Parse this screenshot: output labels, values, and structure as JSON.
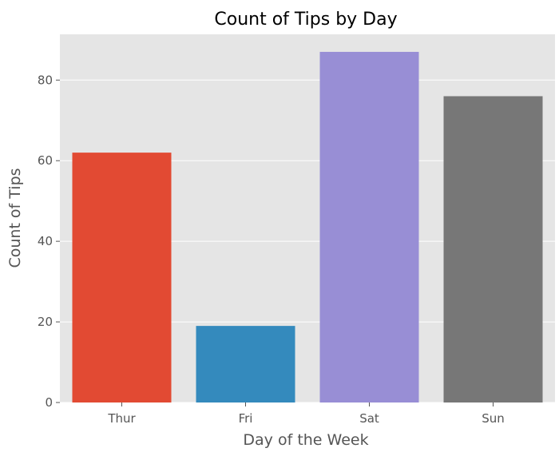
{
  "chart_data": {
    "type": "bar",
    "title": "Count of Tips by Day",
    "xlabel": "Day of the Week",
    "ylabel": "Count of Tips",
    "categories": [
      "Thur",
      "Fri",
      "Sat",
      "Sun"
    ],
    "values": [
      62,
      19,
      87,
      76
    ],
    "colors": [
      "#E24A33",
      "#348ABD",
      "#988ED5",
      "#777777"
    ],
    "yticks": [
      "0",
      "20",
      "40",
      "60",
      "80"
    ],
    "ylim": [
      0,
      91.35
    ],
    "grid": true,
    "background": "#E5E5E5",
    "grid_color": "#FFFFFF"
  }
}
